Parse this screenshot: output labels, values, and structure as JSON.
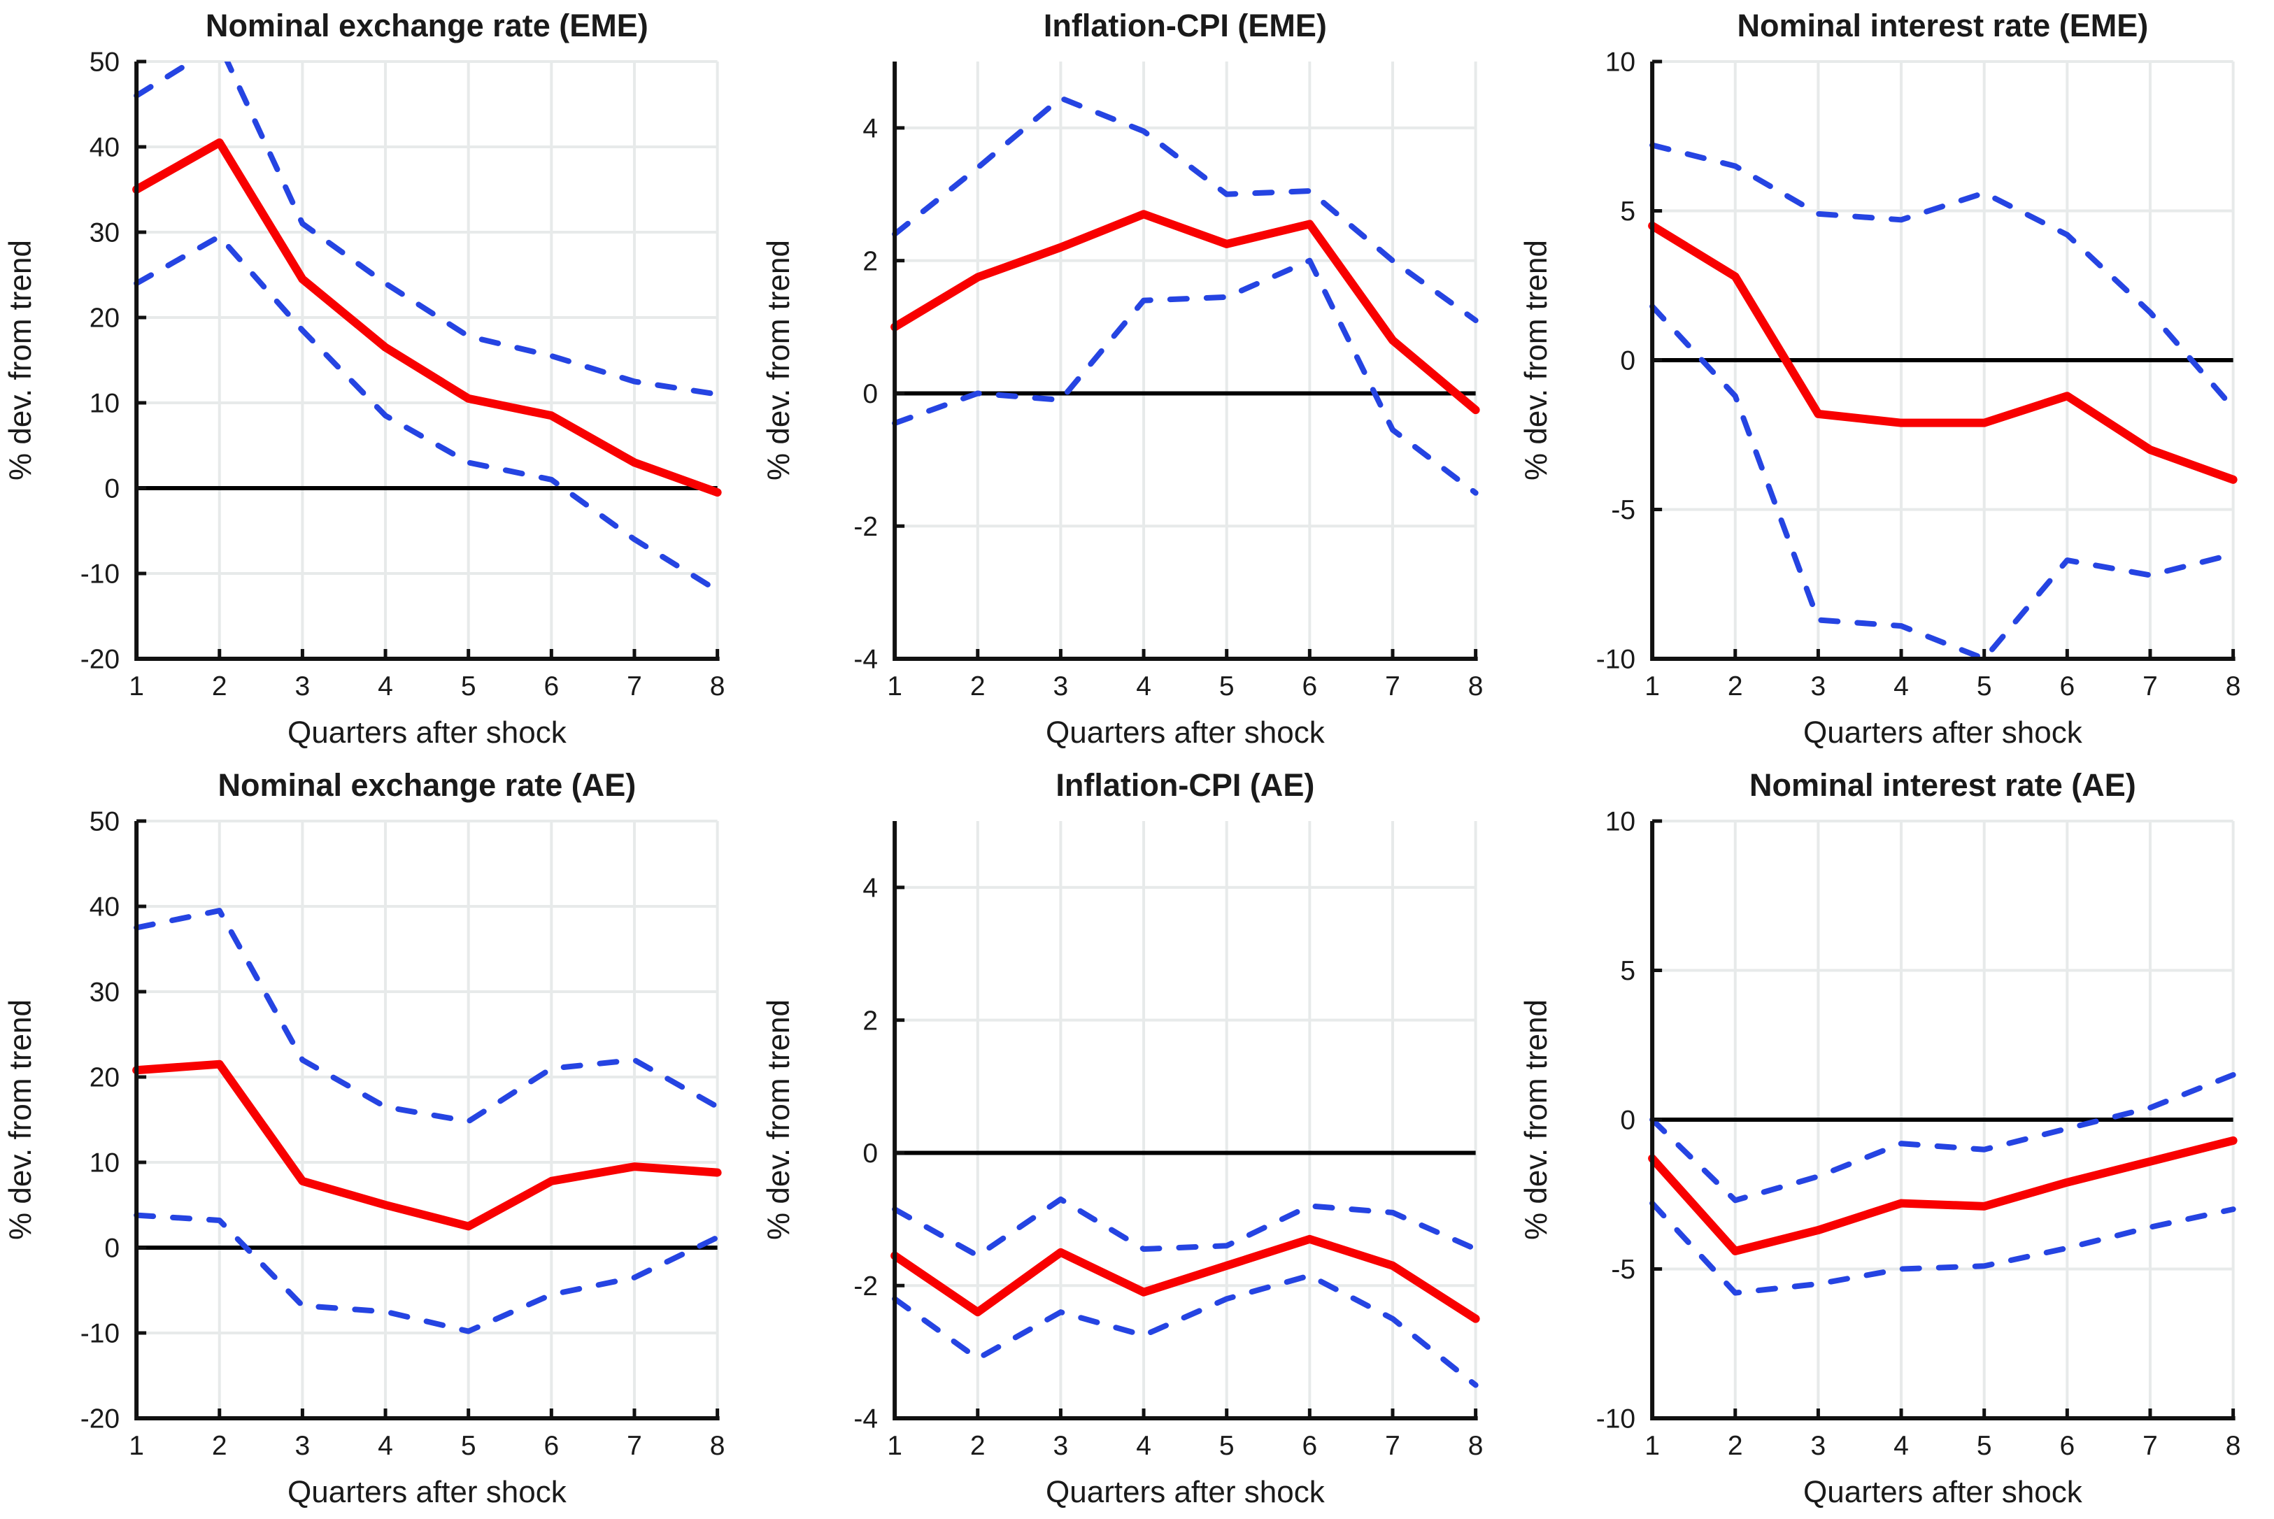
{
  "figure": {
    "layout": "2x3-grid",
    "xlabel": "Quarters after shock",
    "ylabel": "% dev. from trend",
    "colors": {
      "median_line": "#f80000",
      "confidence_band": "#2544e2",
      "grid_line": "#e7eaea",
      "zero_line": "#000000",
      "axis": "#111111",
      "text": "#1a1a1a",
      "background": "#ffffff"
    }
  },
  "chart_data": [
    {
      "type": "line",
      "title": "Nominal exchange rate (EME)",
      "xlabel": "Quarters after shock",
      "ylabel": "% dev. from trend",
      "x": [
        1,
        2,
        3,
        4,
        5,
        6,
        7,
        8
      ],
      "xticks": [
        1,
        2,
        3,
        4,
        5,
        6,
        7,
        8
      ],
      "ylim": [
        -20,
        50
      ],
      "yticks": [
        -20,
        -10,
        0,
        10,
        20,
        30,
        40,
        50
      ],
      "grid": true,
      "zero_line": true,
      "legend": "none",
      "series": [
        {
          "name": "lower-band",
          "style": "dashed",
          "color": "#2544e2",
          "values": [
            24,
            29.5,
            18.5,
            8.5,
            3,
            1,
            -6,
            -12
          ]
        },
        {
          "name": "upper-band",
          "style": "dashed",
          "color": "#2544e2",
          "values": [
            46,
            52,
            31,
            24,
            17.8,
            15.5,
            12.5,
            11
          ]
        },
        {
          "name": "median",
          "style": "solid",
          "color": "#f80000",
          "values": [
            35,
            40.5,
            24.5,
            16.5,
            10.5,
            8.5,
            3,
            -0.5
          ]
        }
      ]
    },
    {
      "type": "line",
      "title": "Inflation-CPI (EME)",
      "xlabel": "Quarters after shock",
      "ylabel": "% dev. from trend",
      "x": [
        1,
        2,
        3,
        4,
        5,
        6,
        7,
        8
      ],
      "xticks": [
        1,
        2,
        3,
        4,
        5,
        6,
        7,
        8
      ],
      "ylim": [
        -4,
        5
      ],
      "yticks": [
        -4,
        -2,
        0,
        2,
        4
      ],
      "grid": true,
      "zero_line": true,
      "legend": "none",
      "series": [
        {
          "name": "lower-band",
          "style": "dashed",
          "color": "#2544e2",
          "values": [
            -0.45,
            0,
            -0.1,
            1.4,
            1.45,
            2,
            -0.55,
            -1.5
          ]
        },
        {
          "name": "upper-band",
          "style": "dashed",
          "color": "#2544e2",
          "values": [
            2.4,
            3.4,
            4.45,
            3.95,
            3,
            3.05,
            2,
            1.1
          ]
        },
        {
          "name": "median",
          "style": "solid",
          "color": "#f80000",
          "values": [
            1,
            1.75,
            2.2,
            2.7,
            2.25,
            2.55,
            0.8,
            -0.25
          ]
        }
      ]
    },
    {
      "type": "line",
      "title": "Nominal interest rate (EME)",
      "xlabel": "Quarters after shock",
      "ylabel": "% dev. from trend",
      "x": [
        1,
        2,
        3,
        4,
        5,
        6,
        7,
        8
      ],
      "xticks": [
        1,
        2,
        3,
        4,
        5,
        6,
        7,
        8
      ],
      "ylim": [
        -10,
        10
      ],
      "yticks": [
        -10,
        -5,
        0,
        5,
        10
      ],
      "grid": true,
      "zero_line": true,
      "legend": "none",
      "series": [
        {
          "name": "lower-band",
          "style": "dashed",
          "color": "#2544e2",
          "values": [
            1.8,
            -1.2,
            -8.7,
            -8.9,
            -10,
            -6.7,
            -7.2,
            -6.5
          ]
        },
        {
          "name": "upper-band",
          "style": "dashed",
          "color": "#2544e2",
          "values": [
            7.2,
            6.5,
            4.9,
            4.7,
            5.6,
            4.2,
            1.6,
            -1.6
          ]
        },
        {
          "name": "median",
          "style": "solid",
          "color": "#f80000",
          "values": [
            4.5,
            2.8,
            -1.8,
            -2.1,
            -2.1,
            -1.2,
            -3,
            -4
          ]
        }
      ]
    },
    {
      "type": "line",
      "title": "Nominal exchange rate (AE)",
      "xlabel": "Quarters after shock",
      "ylabel": "% dev. from trend",
      "x": [
        1,
        2,
        3,
        4,
        5,
        6,
        7,
        8
      ],
      "xticks": [
        1,
        2,
        3,
        4,
        5,
        6,
        7,
        8
      ],
      "ylim": [
        -20,
        50
      ],
      "yticks": [
        -20,
        -10,
        0,
        10,
        20,
        30,
        40,
        50
      ],
      "grid": true,
      "zero_line": true,
      "legend": "none",
      "series": [
        {
          "name": "lower-band",
          "style": "dashed",
          "color": "#2544e2",
          "values": [
            3.8,
            3.2,
            -6.8,
            -7.5,
            -9.8,
            -5.5,
            -3.5,
            1.2
          ]
        },
        {
          "name": "upper-band",
          "style": "dashed",
          "color": "#2544e2",
          "values": [
            37.5,
            39.5,
            22,
            16.5,
            14.8,
            21,
            22,
            16.5
          ]
        },
        {
          "name": "median",
          "style": "solid",
          "color": "#f80000",
          "values": [
            20.8,
            21.5,
            7.8,
            5,
            2.5,
            7.8,
            9.5,
            8.8
          ]
        }
      ]
    },
    {
      "type": "line",
      "title": "Inflation-CPI (AE)",
      "xlabel": "Quarters after shock",
      "ylabel": "% dev. from trend",
      "x": [
        1,
        2,
        3,
        4,
        5,
        6,
        7,
        8
      ],
      "xticks": [
        1,
        2,
        3,
        4,
        5,
        6,
        7,
        8
      ],
      "ylim": [
        -4,
        5
      ],
      "yticks": [
        -4,
        -2,
        0,
        2,
        4
      ],
      "grid": true,
      "zero_line": true,
      "legend": "none",
      "series": [
        {
          "name": "lower-band",
          "style": "dashed",
          "color": "#2544e2",
          "values": [
            -2.2,
            -3.1,
            -2.4,
            -2.75,
            -2.2,
            -1.85,
            -2.5,
            -3.5
          ]
        },
        {
          "name": "upper-band",
          "style": "dashed",
          "color": "#2544e2",
          "values": [
            -0.85,
            -1.55,
            -0.7,
            -1.45,
            -1.4,
            -0.8,
            -0.9,
            -1.45
          ]
        },
        {
          "name": "median",
          "style": "solid",
          "color": "#f80000",
          "values": [
            -1.55,
            -2.4,
            -1.5,
            -2.1,
            -1.7,
            -1.3,
            -1.7,
            -2.5
          ]
        }
      ]
    },
    {
      "type": "line",
      "title": "Nominal interest rate (AE)",
      "xlabel": "Quarters after shock",
      "ylabel": "% dev. from trend",
      "x": [
        1,
        2,
        3,
        4,
        5,
        6,
        7,
        8
      ],
      "xticks": [
        1,
        2,
        3,
        4,
        5,
        6,
        7,
        8
      ],
      "ylim": [
        -10,
        10
      ],
      "yticks": [
        -10,
        -5,
        0,
        5,
        10
      ],
      "grid": true,
      "zero_line": true,
      "legend": "none",
      "series": [
        {
          "name": "lower-band",
          "style": "dashed",
          "color": "#2544e2",
          "values": [
            -2.8,
            -5.8,
            -5.5,
            -5,
            -4.9,
            -4.3,
            -3.6,
            -3
          ]
        },
        {
          "name": "upper-band",
          "style": "dashed",
          "color": "#2544e2",
          "values": [
            0,
            -2.7,
            -1.9,
            -0.8,
            -1,
            -0.3,
            0.4,
            1.5
          ]
        },
        {
          "name": "median",
          "style": "solid",
          "color": "#f80000",
          "values": [
            -1.3,
            -4.4,
            -3.7,
            -2.8,
            -2.9,
            -2.1,
            -1.4,
            -0.7
          ]
        }
      ]
    }
  ]
}
